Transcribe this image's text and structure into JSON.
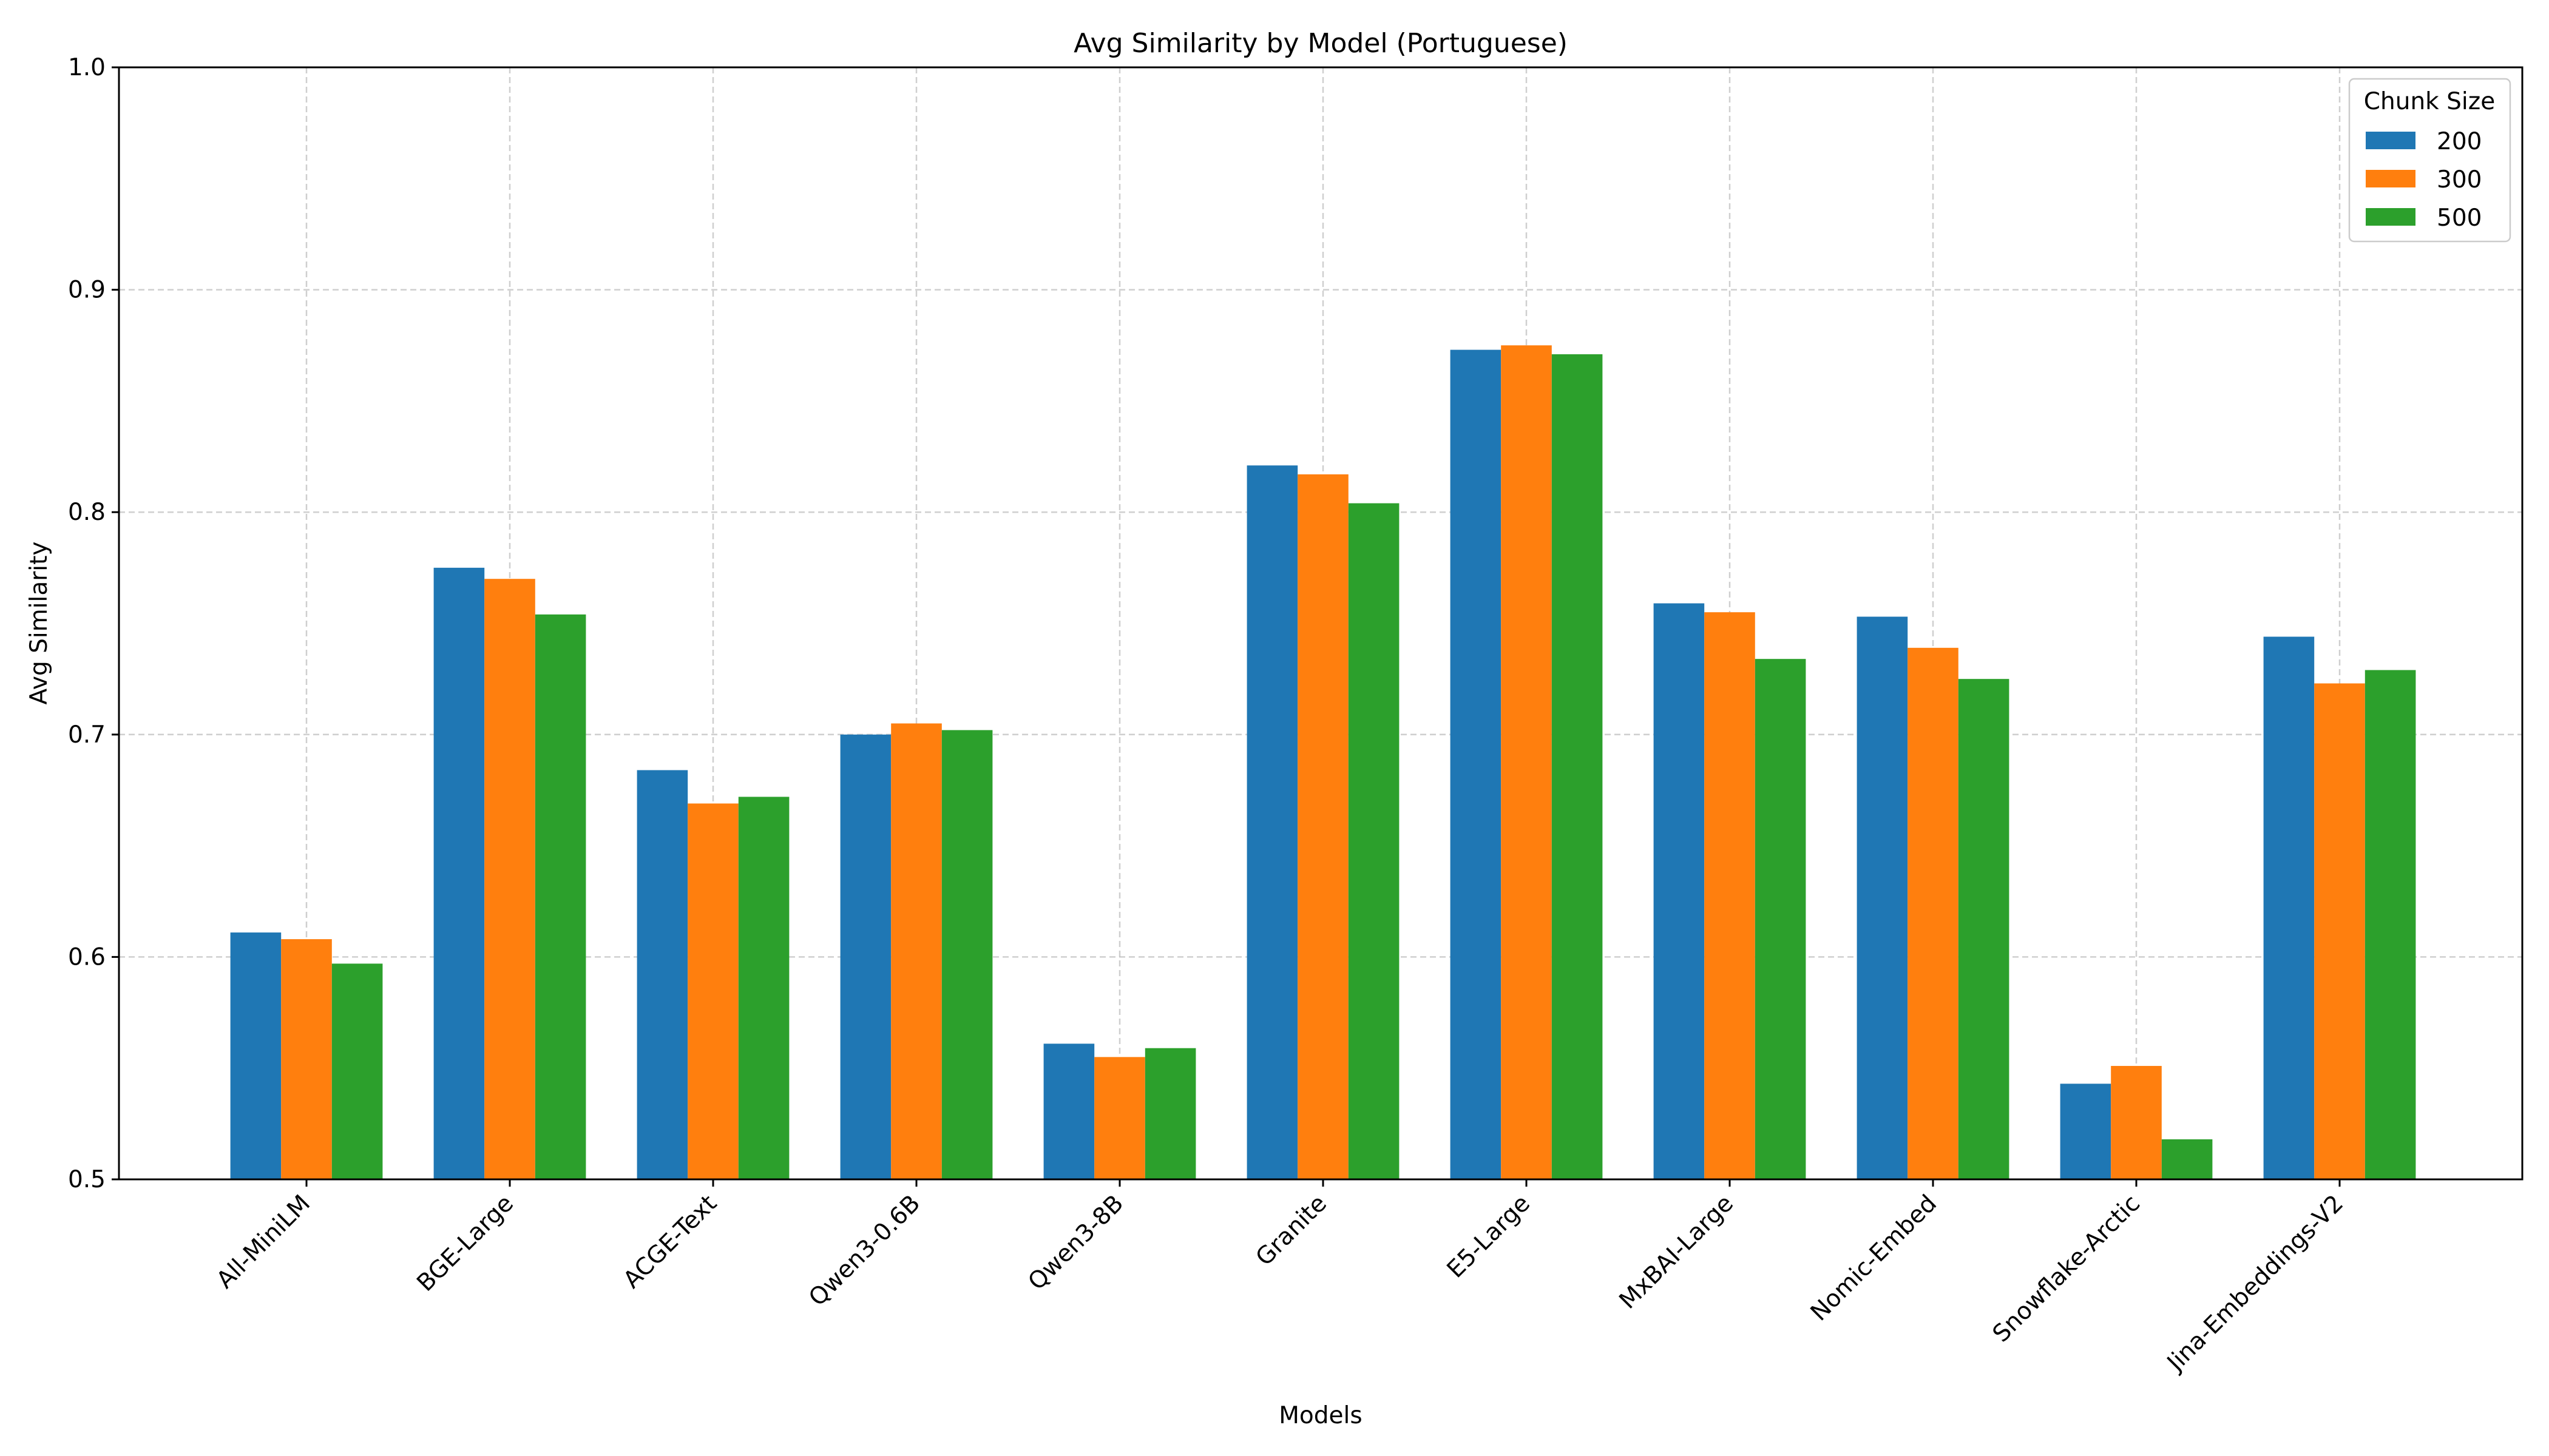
{
  "chart_data": {
    "type": "bar",
    "title": "Avg Similarity by Model (Portuguese)",
    "xlabel": "Models",
    "ylabel": "Avg Similarity",
    "ylim": [
      0.5,
      1.0
    ],
    "yticks": [
      "0.5",
      "0.6",
      "0.7",
      "0.8",
      "0.9",
      "1.0"
    ],
    "grid": true,
    "legend": {
      "title": "Chunk Size",
      "placement": "top-right"
    },
    "categories": [
      "All-MiniLM",
      "BGE-Large",
      "ACGE-Text",
      "Qwen3-0.6B",
      "Qwen3-8B",
      "Granite",
      "E5-Large",
      "MxBAI-Large",
      "Nomic-Embed",
      "Snowflake-Arctic",
      "Jina-Embeddings-V2"
    ],
    "series": [
      {
        "name": "200",
        "color": "#1f77b4",
        "values": [
          0.611,
          0.775,
          0.684,
          0.7,
          0.561,
          0.821,
          0.873,
          0.759,
          0.753,
          0.543,
          0.744
        ]
      },
      {
        "name": "300",
        "color": "#ff7f0e",
        "values": [
          0.608,
          0.77,
          0.669,
          0.705,
          0.555,
          0.817,
          0.875,
          0.755,
          0.739,
          0.551,
          0.723
        ]
      },
      {
        "name": "500",
        "color": "#2ca02c",
        "values": [
          0.597,
          0.754,
          0.672,
          0.702,
          0.559,
          0.804,
          0.871,
          0.734,
          0.725,
          0.518,
          0.729
        ]
      }
    ]
  }
}
